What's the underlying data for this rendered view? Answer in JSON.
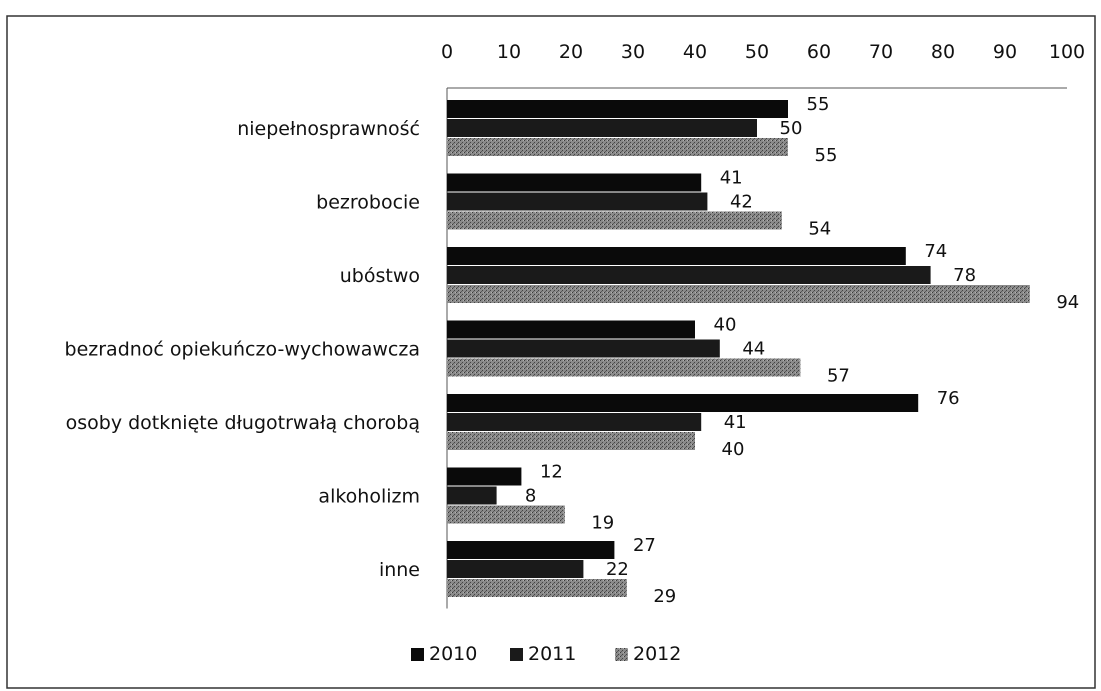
{
  "chart_data": {
    "type": "bar",
    "orientation": "horizontal",
    "categories": [
      "niepełnosprawność",
      "bezrobocie",
      "ubóstwo",
      "bezradnoć opiekuńczo-wychowawcza",
      "osoby dotknięte długotrwałą chorobą",
      "alkoholizm",
      "inne"
    ],
    "series": [
      {
        "name": "2010",
        "values": [
          55,
          41,
          74,
          40,
          76,
          12,
          27
        ],
        "color": "#0a0a0a"
      },
      {
        "name": "2011",
        "values": [
          50,
          42,
          78,
          44,
          41,
          8,
          22
        ],
        "color": "#1a1a1a"
      },
      {
        "name": "2012",
        "values": [
          55,
          54,
          94,
          57,
          40,
          19,
          29
        ],
        "color": "#6e6e6e"
      }
    ],
    "xlim": [
      0,
      100
    ],
    "x_ticks": [
      0,
      10,
      20,
      30,
      40,
      50,
      60,
      70,
      80,
      90,
      100
    ],
    "x_axis_position": "top",
    "grid": false,
    "legend_position": "bottom",
    "title": "",
    "xlabel": "",
    "ylabel": ""
  }
}
